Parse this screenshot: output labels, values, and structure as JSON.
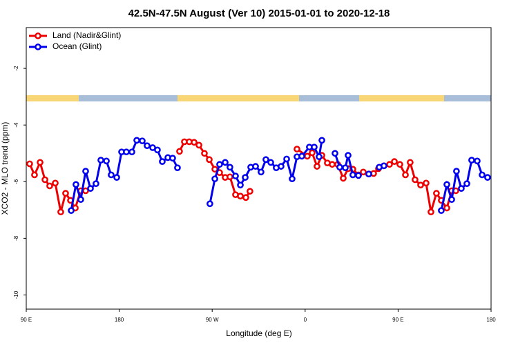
{
  "chart_data": {
    "type": "line",
    "title": "42.5N-47.5N August (Ver 10)   2015-01-01 to 2020-12-18",
    "x_label": "Longitude (deg E)",
    "y_label": "XCO2 - MLO trend (ppm)",
    "xlim": [
      90,
      540
    ],
    "ylim": [
      -10.5,
      -0.56
    ],
    "xticks": [
      {
        "value": 90,
        "label": "90 E"
      },
      180,
      {
        "value": 270,
        "label": "90 W"
      },
      {
        "value": 360,
        "label": "0"
      },
      {
        "value": 450,
        "label": "90 E"
      },
      {
        "value": 540,
        "label": "180"
      }
    ],
    "yticks": [
      -2,
      -4,
      -6,
      -8,
      -10
    ],
    "legend": "top-left",
    "series": [
      {
        "name": "Land (Nadir&Glint)",
        "color": "#ee0000",
        "x": [
          93.3,
          98.0,
          103.4,
          108.1,
          112.7,
          118.1,
          123.4,
          128.1,
          132.8,
          137.5,
          142.8,
          147.5,
          190,
          238.4,
          243.1,
          247.8,
          252.5,
          257.2,
          262.5,
          267.2,
          272.6,
          277.2,
          282.6,
          287.2,
          292.6,
          297.3,
          302.6,
          306.6,
          330,
          352.1,
          362.1,
          366.8,
          371.5,
          376.2,
          381.5,
          386.2,
          391.5,
          396.9,
          401.6,
          406.2,
          411.6,
          416.3,
          421.6,
          426.3,
          431.0,
          436.3,
          441.7,
          446.4,
          451.7,
          457.1,
          461.7,
          466.4,
          471.8,
          477.1,
          481.8,
          487.1,
          491.8,
          497.2,
          501.9,
          505.9
        ],
        "values": [
          -5.37,
          -5.76,
          -5.32,
          -5.93,
          -6.15,
          -6.05,
          -7.07,
          -6.41,
          -6.66,
          -6.93,
          -6.32,
          -6.32,
          null,
          -4.93,
          -4.59,
          -4.59,
          -4.61,
          -4.71,
          -5.0,
          -5.22,
          -5.56,
          -5.68,
          -5.85,
          -5.83,
          -6.46,
          -6.51,
          -6.56,
          -6.34,
          null,
          -4.85,
          -5.1,
          -4.98,
          -5.46,
          -5.07,
          -5.34,
          -5.39,
          -5.39,
          -5.88,
          -5.54,
          -5.56,
          -5.76,
          -5.66,
          -5.73,
          -5.71,
          -5.54,
          -5.44,
          -5.39,
          -5.29,
          -5.39,
          -5.76,
          -5.32,
          -5.93,
          -6.12,
          -6.05,
          -7.07,
          -6.41,
          -6.66,
          -6.93,
          -6.32,
          -6.32
        ]
      },
      {
        "name": "Ocean (Glint)",
        "color": "#0000ee",
        "x": [
          133.5,
          138.1,
          142.8,
          147.5,
          152.2,
          157.5,
          162.2,
          167.6,
          172.2,
          177.6,
          182.3,
          186.9,
          192.3,
          197.0,
          202.3,
          207.0,
          212.4,
          217.0,
          221.7,
          227.1,
          231.7,
          236.4,
          252,
          267.8,
          272.6,
          277.2,
          282.6,
          287.2,
          292.6,
          297.3,
          302.0,
          307.3,
          312.0,
          317.3,
          322.0,
          326.7,
          332.0,
          336.7,
          342.1,
          347.4,
          352.1,
          356.8,
          364.1,
          368.8,
          373.5,
          376.2,
          382,
          388.9,
          393.5,
          398.9,
          401.6,
          406.2,
          411.6,
          416,
          421.6,
          426,
          431.7,
          436.3,
          464,
          491.8,
          497.2,
          501.9,
          506.5,
          511.2,
          516.6,
          521.2,
          526.6,
          531.3,
          536.6
        ],
        "values": [
          -7.02,
          -6.1,
          -6.63,
          -5.63,
          -6.24,
          -6.07,
          -5.24,
          -5.27,
          -5.76,
          -5.85,
          -4.95,
          -4.95,
          -4.95,
          -4.54,
          -4.56,
          -4.73,
          -4.8,
          -4.88,
          -5.29,
          -5.15,
          -5.17,
          -5.51,
          null,
          -6.78,
          -5.9,
          -5.39,
          -5.32,
          -5.49,
          -5.8,
          -6.12,
          -5.85,
          -5.49,
          -5.46,
          -5.66,
          -5.22,
          -5.32,
          -5.51,
          -5.46,
          -5.2,
          -5.9,
          -5.12,
          -5.1,
          -4.78,
          -4.78,
          -5.12,
          -4.54,
          null,
          -5.0,
          -5.49,
          -5.51,
          -5.07,
          -5.76,
          -5.78,
          null,
          -5.73,
          null,
          -5.49,
          -5.44,
          null,
          -7.02,
          -6.1,
          -6.63,
          -5.63,
          -6.24,
          -6.07,
          -5.24,
          -5.27,
          -5.76,
          -5.85
        ]
      }
    ]
  }
}
